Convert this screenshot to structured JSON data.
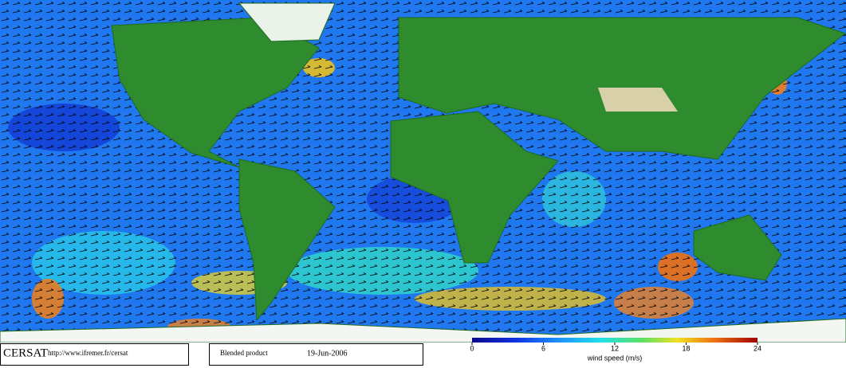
{
  "header": {
    "logo": "CERSAT",
    "url": "http://www.ifremer.fr/cersat"
  },
  "product": {
    "name": "Blended product",
    "date": "19-Jun-2006"
  },
  "colorbar": {
    "label": "wind speed (m/s)",
    "lim": [
      0,
      24
    ],
    "ticks": [
      0,
      6,
      12,
      18,
      24
    ]
  }
}
